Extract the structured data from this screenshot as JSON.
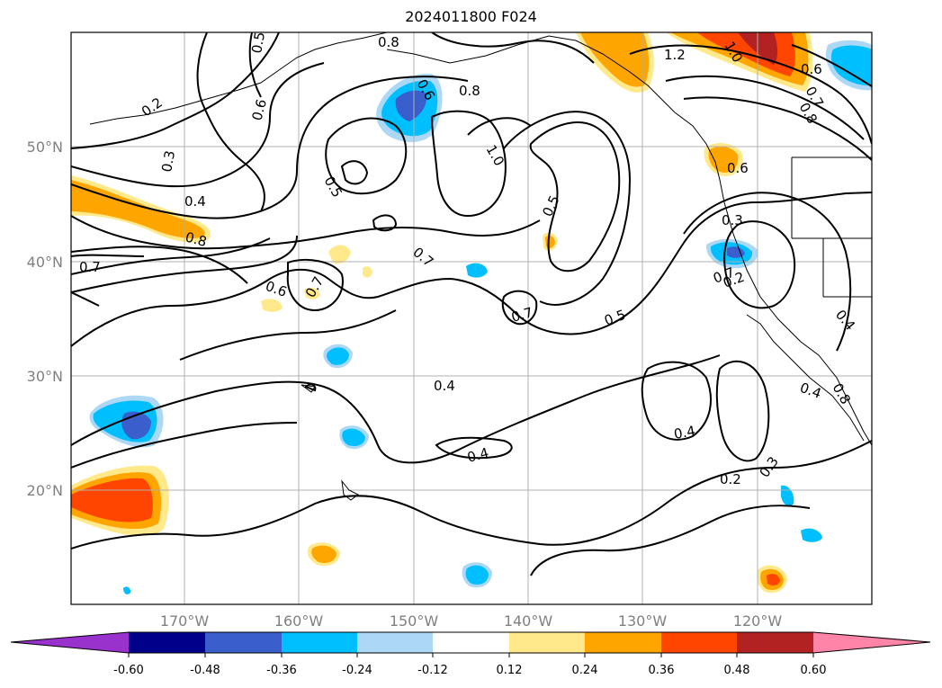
{
  "title": "2024011800 F024",
  "axes": {
    "lat_labels": [
      "50°N",
      "40°N",
      "30°N",
      "20°N"
    ],
    "lon_labels": [
      "170°W",
      "160°W",
      "150°W",
      "140°W",
      "130°W",
      "120°W"
    ]
  },
  "contour_labels": [
    "0.2",
    "0.3",
    "0.4",
    "0.5",
    "0.6",
    "0.8",
    "0.6",
    "0.8",
    "1.0",
    "0.5",
    "0.7",
    "0.7",
    "0.6",
    "0.7",
    "0.8",
    "1.2",
    "1.0",
    "0.6",
    "0.7",
    "0.8",
    "0.5",
    "0.3",
    "0.2",
    "0.7",
    "0.5",
    "0.7",
    "0.4",
    "0.4",
    "0.4",
    "0.4",
    "0.2",
    "0.3",
    "0.4",
    "0.8",
    "0.6"
  ],
  "colorbar": {
    "ticks": [
      "-0.60",
      "-0.48",
      "-0.36",
      "-0.24",
      "-0.12",
      "0.12",
      "0.24",
      "0.36",
      "0.48",
      "0.60"
    ],
    "colors": [
      "#9932cc",
      "#00008b",
      "#3a5fcd",
      "#00bfff",
      "#add8f5",
      "#ffffff",
      "#ffe98a",
      "#ffa500",
      "#ff4500",
      "#b22222",
      "#ff85a8"
    ]
  }
}
